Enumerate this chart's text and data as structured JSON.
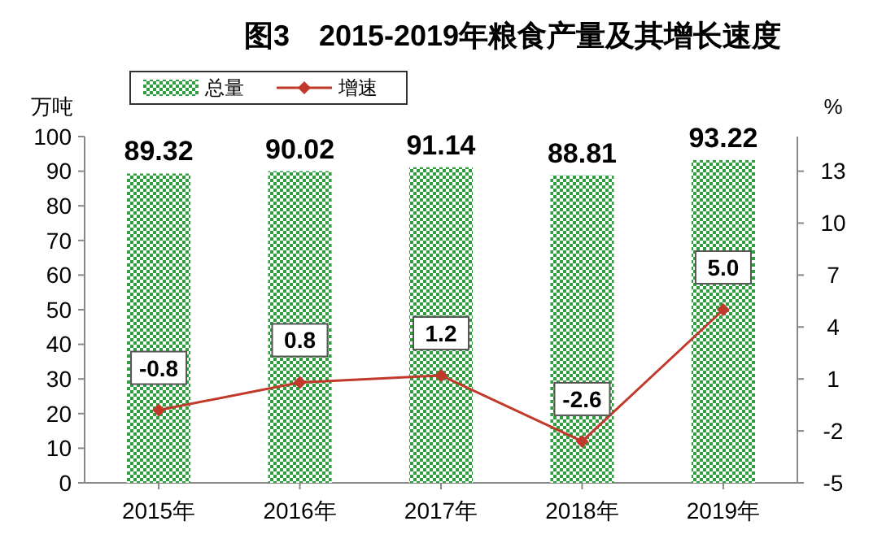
{
  "chart_data": {
    "type": "bar",
    "title": "图3　2015-2019年粮食产量及其增长速度",
    "categories": [
      "2015年",
      "2016年",
      "2017年",
      "2018年",
      "2019年"
    ],
    "series": [
      {
        "name": "总量",
        "color": "#2e9e3e",
        "values": [
          89.32,
          90.02,
          91.14,
          88.81,
          93.22
        ],
        "value_labels": [
          "89.32",
          "90.02",
          "91.14",
          "88.81",
          "93.22"
        ]
      },
      {
        "name": "增速",
        "type": "line",
        "axis": "y2",
        "color": "#c0392b",
        "values": [
          -0.8,
          0.8,
          1.2,
          -2.6,
          5.0
        ],
        "value_labels": [
          "-0.8",
          "0.8",
          "1.2",
          "-2.6",
          "5.0"
        ]
      }
    ],
    "ylabel": "万吨",
    "y2label": "%",
    "ylim": [
      0,
      100
    ],
    "yticks": [
      0,
      10,
      20,
      30,
      40,
      50,
      60,
      70,
      80,
      90,
      100
    ],
    "y2lim": [
      -5,
      15
    ],
    "y2ticks": [
      -5,
      -2,
      1,
      4,
      7,
      10,
      13
    ],
    "legend": "top left",
    "marker": "diamond",
    "grid": false
  }
}
